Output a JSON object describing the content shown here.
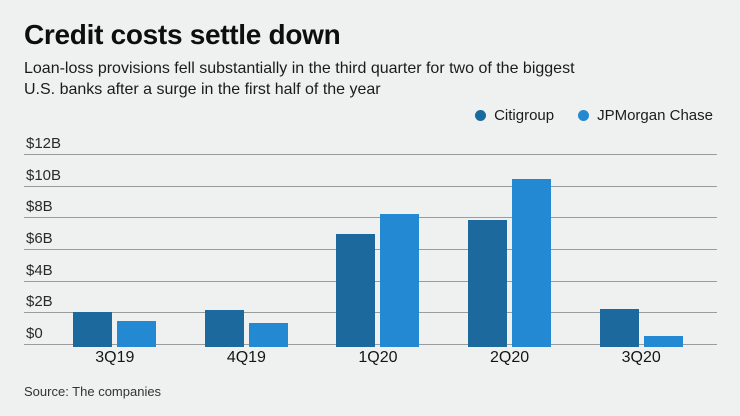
{
  "header": {
    "title": "Credit costs settle down",
    "subtitle_lines": [
      "Loan-loss provisions fell substantially in the third quarter for two of the biggest",
      "U.S. banks after a surge in the first half of the year"
    ]
  },
  "chart_data": {
    "type": "bar",
    "categories": [
      "3Q19",
      "4Q19",
      "1Q20",
      "2Q20",
      "3Q20"
    ],
    "series": [
      {
        "name": "Citigroup",
        "color": "#1c699e",
        "values": [
          2.1,
          2.2,
          7.0,
          7.9,
          2.3
        ]
      },
      {
        "name": "JPMorgan Chase",
        "color": "#2389d3",
        "values": [
          1.5,
          1.4,
          8.3,
          10.5,
          0.6
        ]
      }
    ],
    "title": "Credit costs settle down",
    "xlabel": "",
    "ylabel": "",
    "ylim": [
      0,
      12
    ],
    "y_ticks": [
      {
        "value": 0,
        "label": "$0"
      },
      {
        "value": 2,
        "label": "$2B"
      },
      {
        "value": 4,
        "label": "$4B"
      },
      {
        "value": 6,
        "label": "$6B"
      },
      {
        "value": 8,
        "label": "$8B"
      },
      {
        "value": 10,
        "label": "$10B"
      },
      {
        "value": 12,
        "label": "$12B"
      }
    ],
    "grid": true,
    "legend_position": "top-right"
  },
  "footer": {
    "source": "Source: The companies"
  },
  "palette": {
    "background": "#eff1f0",
    "gridline": "#9a9c9b",
    "title_text": "#0e0e0e",
    "body_text": "#1b1b1b"
  }
}
